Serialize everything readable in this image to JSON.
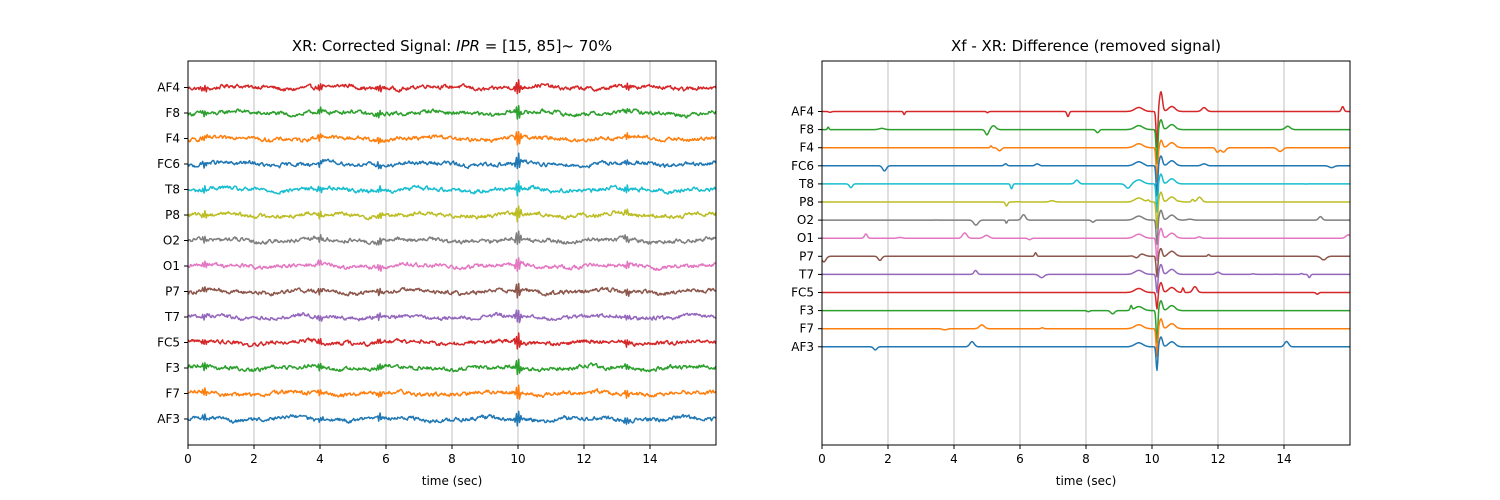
{
  "chart_data": [
    {
      "type": "line",
      "title": "XR: Corrected Signal: IPR = [15, 85]~ 70%",
      "title_parts": {
        "prefix": "XR: Corrected Signal: ",
        "italic": "IPR",
        "suffix": " = [15, 85]~ 70%"
      },
      "xlabel": "time (sec)",
      "ylabel": "",
      "xlim": [
        0,
        16
      ],
      "x_ticks": [
        0,
        2,
        4,
        6,
        8,
        10,
        12,
        14
      ],
      "grid": "x",
      "legend": "none",
      "channels": [
        "AF4",
        "F8",
        "F4",
        "FC6",
        "T8",
        "P8",
        "O2",
        "O1",
        "P7",
        "T7",
        "FC5",
        "F3",
        "F7",
        "AF3"
      ],
      "colors": [
        "#d62728",
        "#2ca02c",
        "#ff7f0e",
        "#1f77b4",
        "#17becf",
        "#bcbd22",
        "#7f7f7f",
        "#e377c2",
        "#8c564b",
        "#9467bd",
        "#d62728",
        "#2ca02c",
        "#ff7f0e",
        "#1f77b4"
      ],
      "noise_amplitude": 0.22,
      "artifact_times": [
        0.5,
        4.0,
        5.8,
        10.0,
        13.3
      ]
    },
    {
      "type": "line",
      "title": "Xf - XR: Difference (removed signal)",
      "xlabel": "time (sec)",
      "ylabel": "",
      "xlim": [
        0,
        16
      ],
      "x_ticks": [
        0,
        2,
        4,
        6,
        8,
        10,
        12,
        14
      ],
      "grid": "x",
      "legend": "none",
      "channels": [
        "AF4",
        "F8",
        "F4",
        "FC6",
        "T8",
        "P8",
        "O2",
        "O1",
        "P7",
        "T7",
        "FC5",
        "F3",
        "F7",
        "AF3"
      ],
      "colors": [
        "#d62728",
        "#2ca02c",
        "#ff7f0e",
        "#1f77b4",
        "#17becf",
        "#bcbd22",
        "#7f7f7f",
        "#e377c2",
        "#8c564b",
        "#9467bd",
        "#d62728",
        "#2ca02c",
        "#ff7f0e",
        "#1f77b4"
      ],
      "spike_time": 10.15,
      "spike_peak": 2.2,
      "spike_trough": -6.5
    }
  ]
}
